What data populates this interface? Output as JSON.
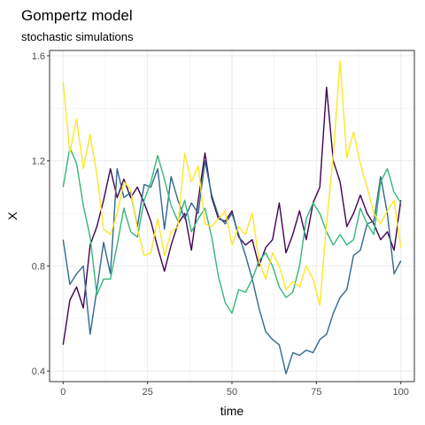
{
  "chart_data": {
    "type": "line",
    "title": "Gompertz model",
    "subtitle": "stochastic simulations",
    "xlabel": "time",
    "ylabel": "X",
    "xlim": [
      -4,
      104
    ],
    "ylim": [
      0.36,
      1.62
    ],
    "x_ticks": [
      0,
      25,
      50,
      75,
      100
    ],
    "x_tick_labels": [
      "0",
      "25",
      "50",
      "75",
      "100"
    ],
    "y_ticks": [
      0.4,
      0.8,
      1.2,
      1.6
    ],
    "y_tick_labels": [
      "0.4",
      "0.8",
      "1.2",
      "1.6"
    ],
    "grid": true,
    "legend": "none",
    "series": [
      {
        "color": "#440154",
        "x": [
          0,
          2,
          4,
          6,
          8,
          10,
          12,
          14,
          16,
          18,
          20,
          22,
          24,
          26,
          28,
          30,
          32,
          34,
          36,
          38,
          40,
          42,
          44,
          46,
          48,
          50,
          52,
          54,
          56,
          58,
          60,
          62,
          64,
          66,
          68,
          70,
          72,
          74,
          76,
          78,
          80,
          82,
          84,
          86,
          88,
          90,
          92,
          94,
          96,
          98,
          100
        ],
        "y": [
          0.5,
          0.67,
          0.72,
          0.64,
          0.88,
          0.95,
          1.05,
          1.17,
          1.06,
          1.13,
          1.06,
          1.1,
          1.04,
          0.97,
          0.87,
          0.78,
          0.88,
          0.96,
          1.0,
          0.86,
          1.05,
          1.23,
          1.06,
          0.98,
          0.97,
          1.01,
          0.91,
          0.88,
          0.9,
          0.8,
          0.87,
          0.9,
          1.04,
          0.85,
          0.92,
          1.01,
          0.9,
          1.04,
          1.1,
          1.48,
          1.2,
          1.12,
          0.95,
          1.0,
          1.07,
          1.0,
          0.96,
          0.9,
          0.93,
          0.86,
          1.05
        ]
      },
      {
        "color": "#31688e",
        "x": [
          0,
          2,
          4,
          6,
          8,
          10,
          12,
          14,
          16,
          18,
          20,
          22,
          24,
          26,
          28,
          30,
          32,
          34,
          36,
          38,
          40,
          42,
          44,
          46,
          48,
          50,
          52,
          54,
          56,
          58,
          60,
          62,
          64,
          66,
          68,
          70,
          72,
          74,
          76,
          78,
          80,
          82,
          84,
          86,
          88,
          90,
          92,
          94,
          96,
          98,
          100
        ],
        "y": [
          0.9,
          0.73,
          0.77,
          0.8,
          0.54,
          0.71,
          0.89,
          0.77,
          1.17,
          1.06,
          1.08,
          0.95,
          1.11,
          1.1,
          1.17,
          0.94,
          1.14,
          1.05,
          0.98,
          1.04,
          1.0,
          1.2,
          1.07,
          0.99,
          0.96,
          1.0,
          0.92,
          0.84,
          0.75,
          0.64,
          0.55,
          0.52,
          0.5,
          0.39,
          0.47,
          0.46,
          0.48,
          0.47,
          0.52,
          0.54,
          0.62,
          0.68,
          0.71,
          0.84,
          0.86,
          0.96,
          0.97,
          1.14,
          1.0,
          0.77,
          0.82
        ]
      },
      {
        "color": "#35b779",
        "x": [
          0,
          2,
          4,
          6,
          8,
          10,
          12,
          14,
          16,
          18,
          20,
          22,
          24,
          26,
          28,
          30,
          32,
          34,
          36,
          38,
          40,
          42,
          44,
          46,
          48,
          50,
          52,
          54,
          56,
          58,
          60,
          62,
          64,
          66,
          68,
          70,
          72,
          74,
          76,
          78,
          80,
          82,
          84,
          86,
          88,
          90,
          92,
          94,
          96,
          98,
          100
        ],
        "y": [
          1.1,
          1.25,
          1.19,
          1.03,
          0.91,
          0.69,
          0.75,
          0.75,
          0.88,
          1.02,
          0.93,
          0.91,
          1.05,
          1.12,
          1.22,
          1.13,
          1.03,
          0.97,
          1.05,
          0.93,
          0.98,
          1.02,
          0.91,
          0.76,
          0.66,
          0.62,
          0.71,
          0.7,
          0.75,
          0.82,
          0.85,
          0.8,
          0.72,
          0.68,
          0.7,
          0.8,
          0.98,
          1.04,
          1.0,
          0.93,
          0.88,
          0.92,
          0.88,
          0.9,
          1.02,
          0.96,
          0.92,
          1.12,
          1.17,
          1.08,
          1.04
        ]
      },
      {
        "color": "#fde725",
        "x": [
          0,
          2,
          4,
          6,
          8,
          10,
          12,
          14,
          16,
          18,
          20,
          22,
          24,
          26,
          28,
          30,
          32,
          34,
          36,
          38,
          40,
          42,
          44,
          46,
          48,
          50,
          52,
          54,
          56,
          58,
          60,
          62,
          64,
          66,
          68,
          70,
          72,
          74,
          76,
          78,
          80,
          82,
          84,
          86,
          88,
          90,
          92,
          94,
          96,
          98,
          100
        ],
        "y": [
          1.5,
          1.23,
          1.36,
          1.17,
          1.3,
          1.15,
          0.94,
          0.92,
          1.0,
          1.12,
          1.09,
          0.94,
          0.84,
          0.85,
          0.98,
          0.84,
          0.93,
          0.95,
          1.23,
          1.12,
          1.18,
          0.96,
          0.95,
          0.98,
          1.01,
          0.88,
          0.95,
          0.92,
          1.0,
          0.82,
          0.75,
          0.85,
          0.8,
          0.71,
          0.74,
          0.72,
          0.8,
          0.75,
          0.65,
          0.96,
          1.22,
          1.58,
          1.21,
          1.31,
          1.19,
          1.1,
          1.0,
          0.96,
          1.01,
          1.05,
          0.87
        ]
      }
    ]
  }
}
